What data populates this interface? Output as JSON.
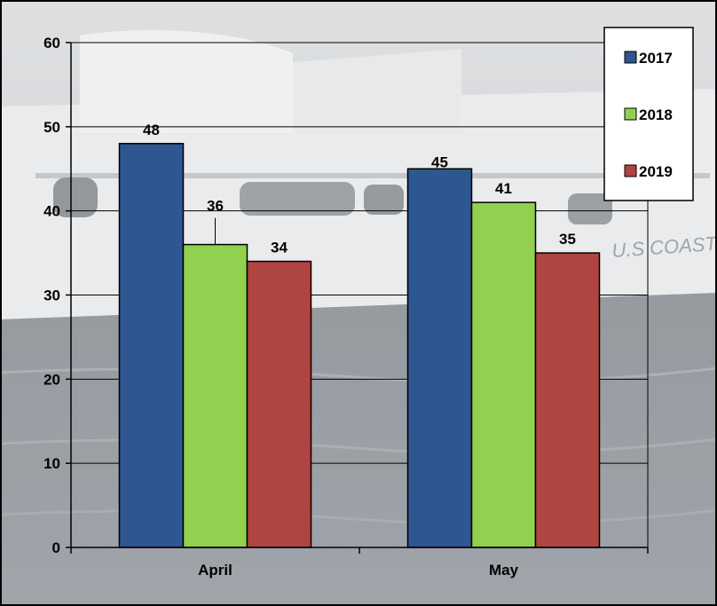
{
  "colors": {
    "s2017": "#2e5690",
    "s2018": "#92d050",
    "s2019": "#b04440",
    "background_photo": "#8d949a"
  },
  "background": "photo-of-coast-guard-ship",
  "background_text": "U.S COAST GUARD",
  "chart_data": {
    "type": "bar",
    "title": "",
    "xlabel": "",
    "ylabel": "",
    "categories": [
      "April",
      "May"
    ],
    "series": [
      {
        "name": "2017",
        "values": [
          48,
          45
        ]
      },
      {
        "name": "2018",
        "values": [
          36,
          41
        ]
      },
      {
        "name": "2019",
        "values": [
          34,
          35
        ]
      }
    ],
    "ylim": [
      0,
      60
    ],
    "yticks": [
      0,
      10,
      20,
      30,
      40,
      50,
      60
    ],
    "grid": true,
    "legend": "top-right",
    "data_labels": true
  }
}
